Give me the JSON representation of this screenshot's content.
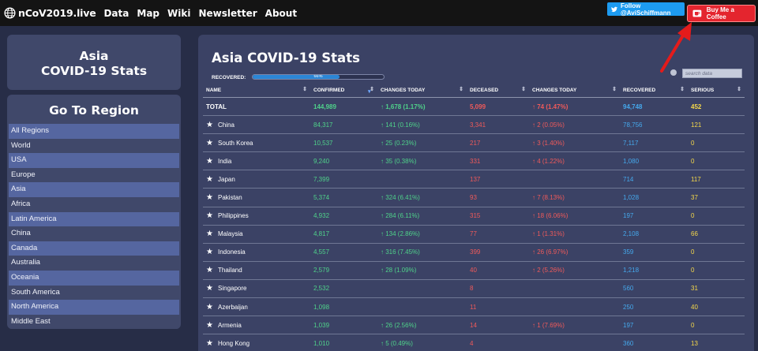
{
  "nav": {
    "brand": "nCoV2019.live",
    "links": [
      "Data",
      "Map",
      "Wiki",
      "Newsletter",
      "About"
    ],
    "twitter_label": "Follow @AviSchiffmann",
    "coffee_label": "Buy Me a Coffee"
  },
  "sidebar": {
    "title_line1": "Asia",
    "title_line2": "COVID-19 Stats",
    "region_heading": "Go To Region",
    "regions": [
      "All Regions",
      "World",
      "USA",
      "Europe",
      "Asia",
      "Africa",
      "Latin America",
      "China",
      "Canada",
      "Australia",
      "Oceania",
      "South America",
      "North America",
      "Middle East"
    ]
  },
  "main": {
    "title": "Asia COVID-19 Stats",
    "recovered_label": "RECOVERED:",
    "recovered_pct_text": "66%",
    "recovered_pct": 66,
    "search_placeholder": "search data"
  },
  "table": {
    "columns": [
      "NAME",
      "CONFIRMED",
      "CHANGES TODAY",
      "DECEASED",
      "CHANGES TODAY",
      "RECOVERED",
      "SERIOUS"
    ],
    "total": {
      "name": "TOTAL",
      "confirmed": "144,989",
      "confirmed_change": "↑ 1,678 (1.17%)",
      "deceased": "5,099",
      "deceased_change": "↑ 74 (1.47%)",
      "recovered": "94,748",
      "serious": "452"
    },
    "rows": [
      {
        "name": "China",
        "confirmed": "84,317",
        "confirmed_change": "↑ 141 (0.16%)",
        "deceased": "3,341",
        "deceased_change": "↑ 2 (0.05%)",
        "recovered": "78,756",
        "serious": "121"
      },
      {
        "name": "South Korea",
        "confirmed": "10,537",
        "confirmed_change": "↑ 25 (0.23%)",
        "deceased": "217",
        "deceased_change": "↑ 3 (1.40%)",
        "recovered": "7,117",
        "serious": "0"
      },
      {
        "name": "India",
        "confirmed": "9,240",
        "confirmed_change": "↑ 35 (0.38%)",
        "deceased": "331",
        "deceased_change": "↑ 4 (1.22%)",
        "recovered": "1,080",
        "serious": "0"
      },
      {
        "name": "Japan",
        "confirmed": "7,399",
        "confirmed_change": "",
        "deceased": "137",
        "deceased_change": "",
        "recovered": "714",
        "serious": "117"
      },
      {
        "name": "Pakistan",
        "confirmed": "5,374",
        "confirmed_change": "↑ 324 (6.41%)",
        "deceased": "93",
        "deceased_change": "↑ 7 (8.13%)",
        "recovered": "1,028",
        "serious": "37"
      },
      {
        "name": "Philippines",
        "confirmed": "4,932",
        "confirmed_change": "↑ 284 (6.11%)",
        "deceased": "315",
        "deceased_change": "↑ 18 (6.06%)",
        "recovered": "197",
        "serious": "0"
      },
      {
        "name": "Malaysia",
        "confirmed": "4,817",
        "confirmed_change": "↑ 134 (2.86%)",
        "deceased": "77",
        "deceased_change": "↑ 1 (1.31%)",
        "recovered": "2,108",
        "serious": "66"
      },
      {
        "name": "Indonesia",
        "confirmed": "4,557",
        "confirmed_change": "↑ 316 (7.45%)",
        "deceased": "399",
        "deceased_change": "↑ 26 (6.97%)",
        "recovered": "359",
        "serious": "0"
      },
      {
        "name": "Thailand",
        "confirmed": "2,579",
        "confirmed_change": "↑ 28 (1.09%)",
        "deceased": "40",
        "deceased_change": "↑ 2 (5.26%)",
        "recovered": "1,218",
        "serious": "0"
      },
      {
        "name": "Singapore",
        "confirmed": "2,532",
        "confirmed_change": "",
        "deceased": "8",
        "deceased_change": "",
        "recovered": "560",
        "serious": "31"
      },
      {
        "name": "Azerbaijan",
        "confirmed": "1,098",
        "confirmed_change": "",
        "deceased": "11",
        "deceased_change": "",
        "recovered": "250",
        "serious": "40"
      },
      {
        "name": "Armenia",
        "confirmed": "1,039",
        "confirmed_change": "↑ 26 (2.56%)",
        "deceased": "14",
        "deceased_change": "↑ 1 (7.69%)",
        "recovered": "197",
        "serious": "0"
      },
      {
        "name": "Hong Kong",
        "confirmed": "1,010",
        "confirmed_change": "↑ 5 (0.49%)",
        "deceased": "4",
        "deceased_change": "",
        "recovered": "360",
        "serious": "13"
      }
    ]
  },
  "icons": {
    "logo": "globe-icon",
    "twitter": "twitter-bird-icon",
    "coffee": "coffee-cup-icon",
    "sort": "sort-arrows-icon",
    "favorite": "star-icon",
    "annotation": "red-arrow-icon"
  },
  "colors": {
    "confirmed": "#4fd28a",
    "deceased": "#f05a5a",
    "recovered": "#45a8ec",
    "serious": "#f5d84a",
    "coffee_button": "#e4252e",
    "twitter_button": "#1d9bf0"
  }
}
